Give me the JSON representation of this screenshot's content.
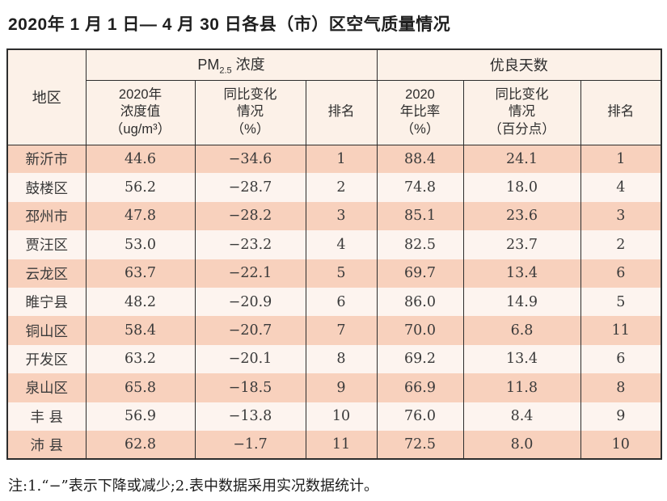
{
  "page": {
    "title": "2020年 1 月 1 日— 4 月 30 日各县（市）区空气质量情况",
    "note": "注:1.“−”表示下降或减少;2.表中数据采用实况数据统计。"
  },
  "colors": {
    "row_odd": "#f8d1bd",
    "row_even": "#fdf4ef",
    "header_bg": "#fcf1e8",
    "border": "#2d2d2d"
  },
  "table": {
    "header": {
      "region": "地区",
      "pm25": {
        "prefix": "PM",
        "sub": "2.5",
        "suffix": " 浓度"
      },
      "good_days": "优良天数",
      "sub_headers": {
        "conc": [
          "2020年",
          "浓度值",
          "（ug/m³）"
        ],
        "pm_change": [
          "同比变化",
          "情况",
          "（%）"
        ],
        "pm_rank": "排名",
        "ratio": [
          "2020",
          "年比率",
          "（%）"
        ],
        "ratio_change": [
          "同比变化",
          "情况",
          "（百分点）"
        ],
        "ratio_rank": "排名"
      }
    },
    "rows": [
      {
        "region": "新沂市",
        "pm_value": "44.6",
        "pm_change": "−34.6",
        "pm_rank": "1",
        "ratio": "88.4",
        "ratio_change": "24.1",
        "ratio_rank": "1"
      },
      {
        "region": "鼓楼区",
        "pm_value": "56.2",
        "pm_change": "−28.7",
        "pm_rank": "2",
        "ratio": "74.8",
        "ratio_change": "18.0",
        "ratio_rank": "4"
      },
      {
        "region": "邳州市",
        "pm_value": "47.8",
        "pm_change": "−28.2",
        "pm_rank": "3",
        "ratio": "85.1",
        "ratio_change": "23.6",
        "ratio_rank": "3"
      },
      {
        "region": "贾汪区",
        "pm_value": "53.0",
        "pm_change": "−23.2",
        "pm_rank": "4",
        "ratio": "82.5",
        "ratio_change": "23.7",
        "ratio_rank": "2"
      },
      {
        "region": "云龙区",
        "pm_value": "63.7",
        "pm_change": "−22.1",
        "pm_rank": "5",
        "ratio": "69.7",
        "ratio_change": "13.4",
        "ratio_rank": "6"
      },
      {
        "region": "睢宁县",
        "pm_value": "48.2",
        "pm_change": "−20.9",
        "pm_rank": "6",
        "ratio": "86.0",
        "ratio_change": "14.9",
        "ratio_rank": "5"
      },
      {
        "region": "铜山区",
        "pm_value": "58.4",
        "pm_change": "−20.7",
        "pm_rank": "7",
        "ratio": "70.0",
        "ratio_change": "6.8",
        "ratio_rank": "11"
      },
      {
        "region": "开发区",
        "pm_value": "63.2",
        "pm_change": "−20.1",
        "pm_rank": "8",
        "ratio": "69.2",
        "ratio_change": "13.4",
        "ratio_rank": "6"
      },
      {
        "region": "泉山区",
        "pm_value": "65.8",
        "pm_change": "−18.5",
        "pm_rank": "9",
        "ratio": "66.9",
        "ratio_change": "11.8",
        "ratio_rank": "8"
      },
      {
        "region": "丰 县",
        "pm_value": "56.9",
        "pm_change": "−13.8",
        "pm_rank": "10",
        "ratio": "76.0",
        "ratio_change": "8.4",
        "ratio_rank": "9"
      },
      {
        "region": "沛 县",
        "pm_value": "62.8",
        "pm_change": "−1.7",
        "pm_rank": "11",
        "ratio": "72.5",
        "ratio_change": "8.0",
        "ratio_rank": "10"
      }
    ]
  }
}
